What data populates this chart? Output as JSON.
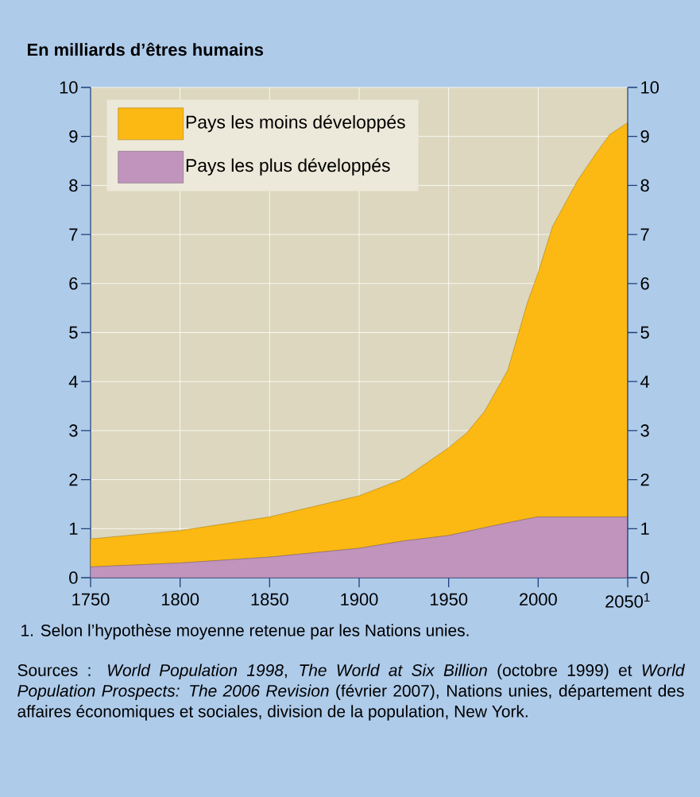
{
  "chart_data": {
    "type": "area",
    "stacked": true,
    "title": "En milliards d’êtres humains",
    "x": [
      1750,
      1800,
      1850,
      1900,
      1925,
      1950,
      1960,
      1970,
      1983,
      1994,
      2000,
      2008,
      2022,
      2032,
      2040,
      2050
    ],
    "series": [
      {
        "name": "Pays les plus développés",
        "color": "#c094bc",
        "values": [
          0.22,
          0.3,
          0.42,
          0.6,
          0.75,
          0.86,
          0.94,
          1.02,
          1.12,
          1.2,
          1.24,
          1.24,
          1.24,
          1.24,
          1.24,
          1.24
        ]
      },
      {
        "name": "Pays les moins développés",
        "color": "#fdb913",
        "values": [
          0.57,
          0.66,
          0.82,
          1.07,
          1.27,
          1.79,
          2.01,
          2.37,
          3.11,
          4.41,
          4.98,
          5.92,
          6.86,
          7.4,
          7.8,
          8.04
        ]
      }
    ],
    "xlim": [
      1750,
      2050
    ],
    "xticks": [
      1750,
      1800,
      1850,
      1900,
      1950,
      2000,
      {
        "value": 2050,
        "label": "2050$^{1}$"
      }
    ],
    "ylim": [
      0,
      10
    ],
    "yticks": [
      0,
      1,
      2,
      3,
      4,
      5,
      6,
      7,
      8,
      9,
      10
    ],
    "y2lim": [
      0,
      10
    ],
    "y2ticks": [
      0,
      1,
      2,
      3,
      4,
      5,
      6,
      7,
      8,
      9,
      10
    ],
    "grid": true,
    "legend": "top left",
    "annotations": [
      "1. Selon l’hypothèse moyenne retenue par les Nations unies.",
      "Sources : *World Population 1998*, *The World at Six Billion* (octobre 1999) et *World Population Prospects: The 2006 Revision* (février 2007), Nations unies, département des affaires économiques et sociales, division de la population, New York."
    ]
  }
}
